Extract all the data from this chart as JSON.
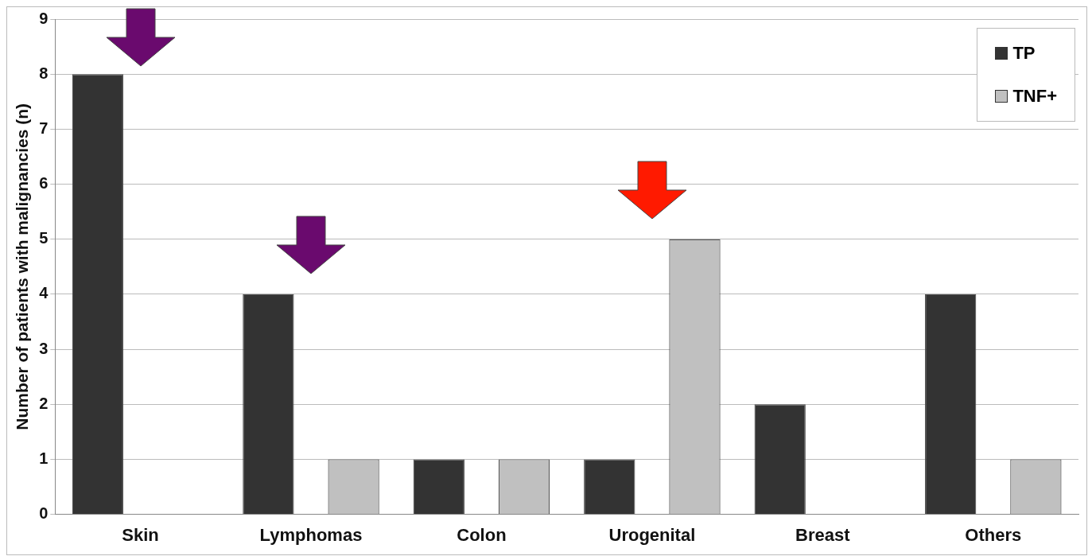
{
  "chart_data": {
    "type": "bar",
    "ylabel": "Number of patients with malignancies (n)",
    "categories": [
      "Skin",
      "Lymphomas",
      "Colon",
      "Urogenital",
      "Breast",
      "Others"
    ],
    "series": [
      {
        "name": "TP",
        "color": "#333333",
        "values": [
          8,
          4,
          1,
          1,
          2,
          4
        ]
      },
      {
        "name": "TNF+",
        "color": "#c0c0c0",
        "values": [
          0,
          1,
          1,
          5,
          0,
          1
        ]
      }
    ],
    "ylim": [
      0,
      9
    ],
    "yticks": [
      0,
      1,
      2,
      3,
      4,
      5,
      6,
      7,
      8,
      9
    ],
    "grid": "y",
    "legend": "top right"
  }
}
